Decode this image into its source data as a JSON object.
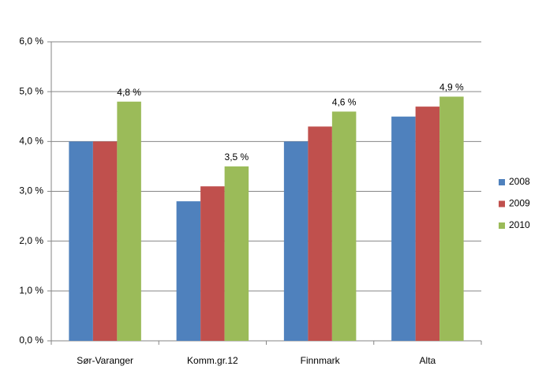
{
  "chart_data": {
    "type": "bar",
    "categories": [
      "Sør-Varanger",
      "Komm.gr.12",
      "Finnmark",
      "Alta"
    ],
    "series": [
      {
        "name": "2008",
        "color": "#4f81bd",
        "values": [
          4.0,
          2.8,
          4.0,
          4.5
        ]
      },
      {
        "name": "2009",
        "color": "#c0504d",
        "values": [
          4.0,
          3.1,
          4.3,
          4.7
        ]
      },
      {
        "name": "2010",
        "color": "#9bbb59",
        "values": [
          4.8,
          3.5,
          4.6,
          4.9
        ],
        "value_labels": [
          "4,8 %",
          "3,5 %",
          "4,6 %",
          "4,9 %"
        ]
      }
    ],
    "ylim": [
      0,
      6
    ],
    "yticks": [
      {
        "value": 0,
        "label": "0,0 %"
      },
      {
        "value": 1,
        "label": "1,0 %"
      },
      {
        "value": 2,
        "label": "2,0 %"
      },
      {
        "value": 3,
        "label": "3,0 %"
      },
      {
        "value": 4,
        "label": "4,0 %"
      },
      {
        "value": 5,
        "label": "5,0 %"
      },
      {
        "value": 6,
        "label": "6,0 %"
      }
    ],
    "grid": true,
    "legend": "right"
  }
}
